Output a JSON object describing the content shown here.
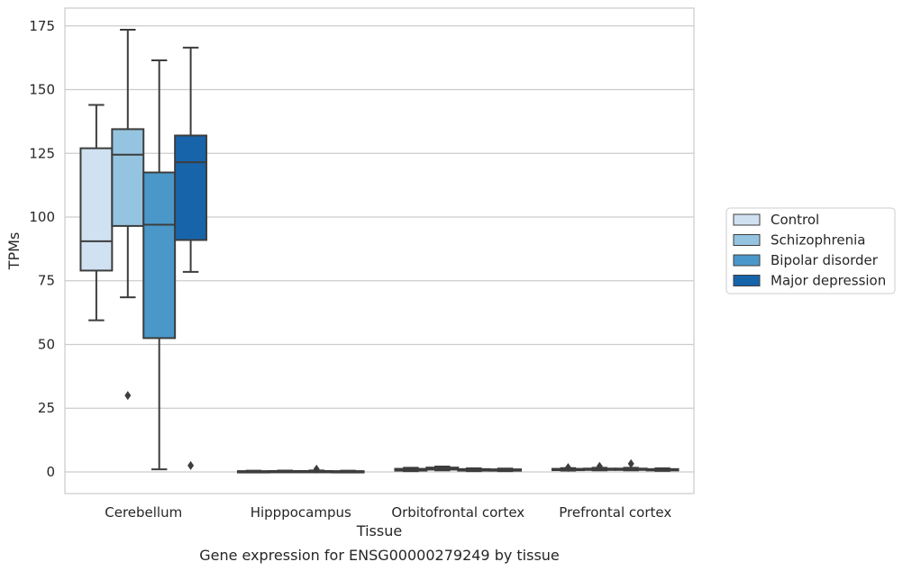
{
  "chart_data": {
    "type": "box",
    "title": "",
    "caption": "Gene expression for ENSG00000279249 by tissue",
    "xlabel": "Tissue",
    "ylabel": "TPMs",
    "ylim": [
      -8.5,
      182
    ],
    "yticks": [
      0,
      25,
      50,
      75,
      100,
      125,
      150,
      175
    ],
    "grid": "horizontal",
    "legend_position": "outside-right",
    "categories": [
      "Cerebellum",
      "Hipppocampus",
      "Orbitofrontal cortex",
      "Prefrontal cortex"
    ],
    "series": [
      {
        "name": "Control",
        "color": "#d0e1f2",
        "boxes": [
          {
            "whisker_low": 59.5,
            "q1": 79,
            "median": 90.5,
            "q3": 127,
            "whisker_high": 144,
            "outliers": []
          },
          {
            "whisker_low": 0.05,
            "q1": 0.1,
            "median": 0.15,
            "q3": 0.3,
            "whisker_high": 0.45,
            "outliers": []
          },
          {
            "whisker_low": 0.3,
            "q1": 0.5,
            "median": 0.8,
            "q3": 1.2,
            "whisker_high": 1.6,
            "outliers": []
          },
          {
            "whisker_low": 0.5,
            "q1": 0.7,
            "median": 0.9,
            "q3": 1.2,
            "whisker_high": 1.5,
            "outliers": [
              1.7
            ]
          }
        ]
      },
      {
        "name": "Schizophrenia",
        "color": "#94c4df",
        "boxes": [
          {
            "whisker_low": 68.5,
            "q1": 96.5,
            "median": 124.5,
            "q3": 134.5,
            "whisker_high": 173.5,
            "outliers": [
              30
            ]
          },
          {
            "whisker_low": 0.05,
            "q1": 0.1,
            "median": 0.2,
            "q3": 0.35,
            "whisker_high": 0.5,
            "outliers": []
          },
          {
            "whisker_low": 0.6,
            "q1": 0.9,
            "median": 1.2,
            "q3": 1.7,
            "whisker_high": 2.1,
            "outliers": []
          },
          {
            "whisker_low": 0.6,
            "q1": 0.8,
            "median": 1.0,
            "q3": 1.3,
            "whisker_high": 1.6,
            "outliers": [
              2.2
            ]
          }
        ]
      },
      {
        "name": "Bipolar disorder",
        "color": "#4a98c9",
        "boxes": [
          {
            "whisker_low": 1,
            "q1": 52.5,
            "median": 97,
            "q3": 117.5,
            "whisker_high": 161.5,
            "outliers": []
          },
          {
            "whisker_low": 0.05,
            "q1": 0.1,
            "median": 0.2,
            "q3": 0.35,
            "whisker_high": 0.55,
            "outliers": [
              1.1
            ]
          },
          {
            "whisker_low": 0.3,
            "q1": 0.5,
            "median": 0.8,
            "q3": 1.1,
            "whisker_high": 1.4,
            "outliers": []
          },
          {
            "whisker_low": 0.6,
            "q1": 0.8,
            "median": 1.0,
            "q3": 1.3,
            "whisker_high": 1.6,
            "outliers": [
              3.2
            ]
          }
        ]
      },
      {
        "name": "Major depression",
        "color": "#1764ab",
        "boxes": [
          {
            "whisker_low": 78.5,
            "q1": 91,
            "median": 121.5,
            "q3": 132,
            "whisker_high": 166.5,
            "outliers": [
              2.5
            ]
          },
          {
            "whisker_low": 0.05,
            "q1": 0.1,
            "median": 0.15,
            "q3": 0.3,
            "whisker_high": 0.45,
            "outliers": []
          },
          {
            "whisker_low": 0.3,
            "q1": 0.5,
            "median": 0.7,
            "q3": 1.0,
            "whisker_high": 1.3,
            "outliers": []
          },
          {
            "whisker_low": 0.4,
            "q1": 0.6,
            "median": 0.8,
            "q3": 1.1,
            "whisker_high": 1.4,
            "outliers": []
          }
        ]
      }
    ]
  }
}
